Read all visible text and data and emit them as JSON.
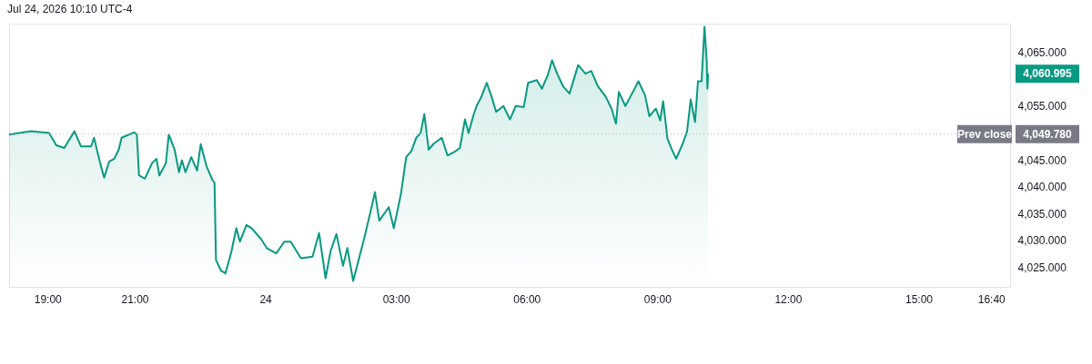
{
  "chart_data": {
    "type": "area",
    "annotations": [
      "Jul 24, 2026 10:10 UTC-4",
      "4,060.995",
      "4,049.780"
    ],
    "x": [
      "2026-07-23T18:07",
      "2026-07-23T18:37",
      "2026-07-23T19:02",
      "2026-07-23T19:12",
      "2026-07-23T19:23",
      "2026-07-23T19:37",
      "2026-07-23T19:46",
      "2026-07-23T20:00",
      "2026-07-23T20:04",
      "2026-07-23T20:13",
      "2026-07-23T20:18",
      "2026-07-23T20:25",
      "2026-07-23T20:32",
      "2026-07-23T20:38",
      "2026-07-23T20:42",
      "2026-07-23T20:59",
      "2026-07-23T21:03",
      "2026-07-23T21:06",
      "2026-07-23T21:14",
      "2026-07-23T21:24",
      "2026-07-23T21:30",
      "2026-07-23T21:34",
      "2026-07-23T21:43",
      "2026-07-23T21:47",
      "2026-07-23T21:55",
      "2026-07-23T22:01",
      "2026-07-23T22:05",
      "2026-07-23T22:10",
      "2026-07-23T22:18",
      "2026-07-23T22:26",
      "2026-07-23T22:31",
      "2026-07-23T22:39",
      "2026-07-23T22:47",
      "2026-07-23T22:50",
      "2026-07-23T22:52",
      "2026-07-23T22:59",
      "2026-07-23T23:05",
      "2026-07-23T23:13",
      "2026-07-23T23:20",
      "2026-07-23T23:25",
      "2026-07-23T23:34",
      "2026-07-23T23:41",
      "2026-07-23T23:54",
      "2026-07-24T00:02",
      "2026-07-24T00:15",
      "2026-07-24T00:26",
      "2026-07-24T00:35",
      "2026-07-24T00:49",
      "2026-07-24T01:05",
      "2026-07-24T01:14",
      "2026-07-24T01:23",
      "2026-07-24T01:30",
      "2026-07-24T01:38",
      "2026-07-24T01:47",
      "2026-07-24T01:53",
      "2026-07-24T02:01",
      "2026-07-24T02:16",
      "2026-07-24T02:25",
      "2026-07-24T02:31",
      "2026-07-24T02:37",
      "2026-07-24T02:50",
      "2026-07-24T02:57",
      "2026-07-24T03:07",
      "2026-07-24T03:14",
      "2026-07-24T03:21",
      "2026-07-24T03:28",
      "2026-07-24T03:34",
      "2026-07-24T03:39",
      "2026-07-24T03:45",
      "2026-07-24T03:52",
      "2026-07-24T04:03",
      "2026-07-24T04:11",
      "2026-07-24T04:22",
      "2026-07-24T04:28",
      "2026-07-24T04:35",
      "2026-07-24T04:40",
      "2026-07-24T04:47",
      "2026-07-24T04:51",
      "2026-07-24T04:57",
      "2026-07-24T05:05",
      "2026-07-24T05:11",
      "2026-07-24T05:18",
      "2026-07-24T05:28",
      "2026-07-24T05:37",
      "2026-07-24T05:45",
      "2026-07-24T05:56",
      "2026-07-24T06:02",
      "2026-07-24T06:14",
      "2026-07-24T06:21",
      "2026-07-24T06:29",
      "2026-07-24T06:35",
      "2026-07-24T06:42",
      "2026-07-24T06:50",
      "2026-07-24T06:59",
      "2026-07-24T07:11",
      "2026-07-24T07:21",
      "2026-07-24T07:29",
      "2026-07-24T07:38",
      "2026-07-24T07:49",
      "2026-07-24T07:57",
      "2026-07-24T08:03",
      "2026-07-24T08:07",
      "2026-07-24T08:16",
      "2026-07-24T08:24",
      "2026-07-24T08:34",
      "2026-07-24T08:43",
      "2026-07-24T08:49",
      "2026-07-24T08:58",
      "2026-07-24T09:04",
      "2026-07-24T09:08",
      "2026-07-24T09:14",
      "2026-07-24T09:20",
      "2026-07-24T09:26",
      "2026-07-24T09:35",
      "2026-07-24T09:41",
      "2026-07-24T09:46",
      "2026-07-24T09:52",
      "2026-07-24T09:56",
      "2026-07-24T10:01",
      "2026-07-24T10:05",
      "2026-07-24T10:08",
      "2026-07-24T10:09",
      "2026-07-24T10:10"
    ],
    "series": [
      {
        "color": "#089981",
        "values": [
          4049.7,
          4050.3,
          4050.0,
          4047.7,
          4047.2,
          4050.3,
          4047.5,
          4047.5,
          4049.1,
          4044.1,
          4041.7,
          4044.7,
          4045.2,
          4046.9,
          4049.1,
          4050.1,
          4049.7,
          4042.1,
          4041.5,
          4044.4,
          4045.2,
          4042.1,
          4044.4,
          4049.7,
          4046.9,
          4042.7,
          4044.9,
          4042.7,
          4045.5,
          4043.0,
          4047.9,
          4043.8,
          4041.3,
          4040.7,
          4026.4,
          4024.4,
          4023.9,
          4027.8,
          4032.3,
          4029.8,
          4032.9,
          4032.3,
          4030.3,
          4028.6,
          4027.6,
          4029.8,
          4029.8,
          4026.7,
          4027.0,
          4031.4,
          4023.0,
          4028.1,
          4031.2,
          4025.3,
          4028.6,
          4022.5,
          4030.3,
          4035.4,
          4039.0,
          4033.7,
          4036.2,
          4032.3,
          4038.8,
          4045.5,
          4046.6,
          4049.1,
          4050.0,
          4053.5,
          4046.9,
          4048.0,
          4049.1,
          4045.8,
          4046.6,
          4047.2,
          4052.5,
          4050.0,
          4053.4,
          4055.0,
          4056.5,
          4059.3,
          4057.0,
          4053.9,
          4055.0,
          4052.5,
          4055.0,
          4054.8,
          4059.3,
          4059.8,
          4058.2,
          4060.7,
          4063.5,
          4061.0,
          4058.7,
          4057.3,
          4062.6,
          4061.0,
          4061.5,
          4058.7,
          4056.7,
          4054.5,
          4051.7,
          4057.6,
          4055.0,
          4057.0,
          4059.6,
          4057.0,
          4053.1,
          4054.5,
          4052.3,
          4055.9,
          4048.9,
          4046.9,
          4045.2,
          4048.0,
          4050.3,
          4056.2,
          4052.0,
          4059.6,
          4059.6,
          4069.7,
          4063.5,
          4058.2,
          4061.0
        ]
      }
    ],
    "xlim": [
      "2026-07-23T18:07",
      "2026-07-24T17:06"
    ],
    "xticks": [
      {
        "value": "2026-07-23T19:00",
        "label": "19:00"
      },
      {
        "value": "2026-07-23T21:00",
        "label": "21:00"
      },
      {
        "value": "2026-07-24T00:00",
        "label": "24"
      },
      {
        "value": "2026-07-24T03:00",
        "label": "03:00"
      },
      {
        "value": "2026-07-24T06:00",
        "label": "06:00"
      },
      {
        "value": "2026-07-24T09:00",
        "label": "09:00"
      },
      {
        "value": "2026-07-24T12:00",
        "label": "12:00"
      },
      {
        "value": "2026-07-24T15:00",
        "label": "15:00"
      },
      {
        "value": "2026-07-24T16:40",
        "label": "16:40"
      }
    ],
    "ylim": [
      4021.4,
      4070.3
    ],
    "yticks": [
      {
        "value": 4025,
        "label": "4,025.000"
      },
      {
        "value": 4030,
        "label": "4,030.000"
      },
      {
        "value": 4035,
        "label": "4,035.000"
      },
      {
        "value": 4040,
        "label": "4,040.000"
      },
      {
        "value": 4045,
        "label": "4,045.000"
      },
      {
        "value": 4055,
        "label": "4,055.000"
      },
      {
        "value": 4065,
        "label": "4,065.000"
      }
    ],
    "ref_lines": [
      {
        "axis": "y",
        "value": 4049.78,
        "label": "Prev close",
        "color": "#b2b5be",
        "line_style": "dotted"
      }
    ]
  }
}
